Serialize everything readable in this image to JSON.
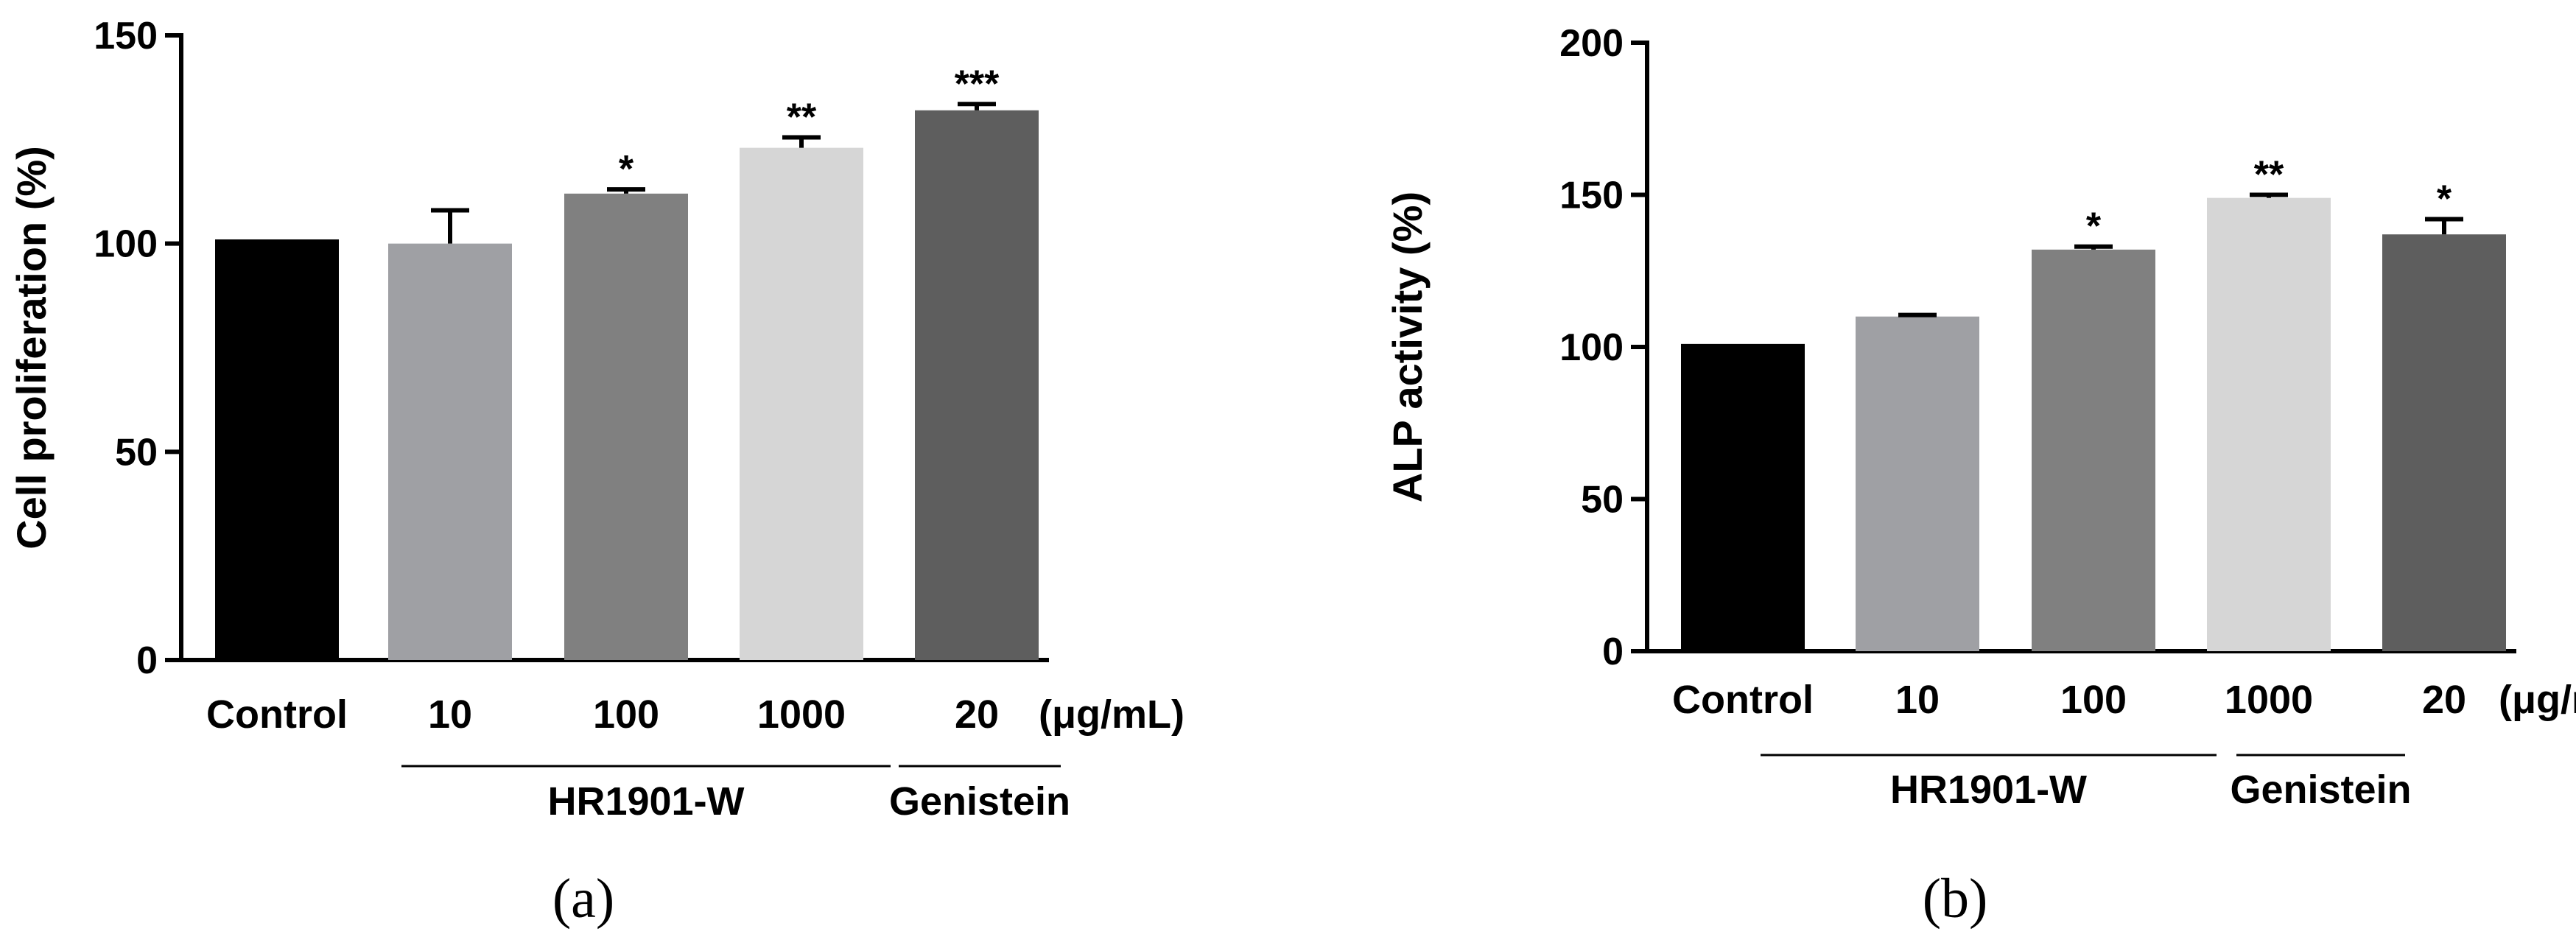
{
  "chart_data": [
    {
      "type": "bar",
      "panel": "a",
      "panel_label": "(a)",
      "ylabel": "Cell proliferation (%)",
      "ylim": [
        0,
        150
      ],
      "yticks": [
        0,
        50,
        100,
        150
      ],
      "unit_label": "(μg/mL)",
      "categories": [
        "Control",
        "10",
        "100",
        "1000",
        "20"
      ],
      "values": [
        101,
        100,
        112,
        123,
        132
      ],
      "errors": [
        0,
        8,
        1,
        2.5,
        1.5
      ],
      "significance": [
        "",
        "",
        "*",
        "**",
        "***"
      ],
      "colors": [
        "#000000",
        "#9fa0a4",
        "#808080",
        "#d6d6d6",
        "#5e5e5e"
      ],
      "groups": [
        {
          "label": "HR1901-W",
          "from": 1,
          "to": 3
        },
        {
          "label": "Genistein",
          "from": 4,
          "to": 4
        }
      ]
    },
    {
      "type": "bar",
      "panel": "b",
      "panel_label": "(b)",
      "ylabel": "ALP activity (%)",
      "ylim": [
        0,
        200
      ],
      "yticks": [
        0,
        50,
        100,
        150,
        200
      ],
      "unit_label": "(μg/mL)",
      "categories": [
        "Control",
        "10",
        "100",
        "1000",
        "20"
      ],
      "values": [
        101,
        110,
        132,
        149,
        137
      ],
      "errors": [
        0,
        0.5,
        1,
        1,
        5
      ],
      "significance": [
        "",
        "",
        "*",
        "**",
        "*"
      ],
      "colors": [
        "#000000",
        "#9fa0a4",
        "#808080",
        "#d6d6d6",
        "#5e5e5e"
      ],
      "groups": [
        {
          "label": "HR1901-W",
          "from": 1,
          "to": 3
        },
        {
          "label": "Genistein",
          "from": 4,
          "to": 4
        }
      ]
    }
  ]
}
